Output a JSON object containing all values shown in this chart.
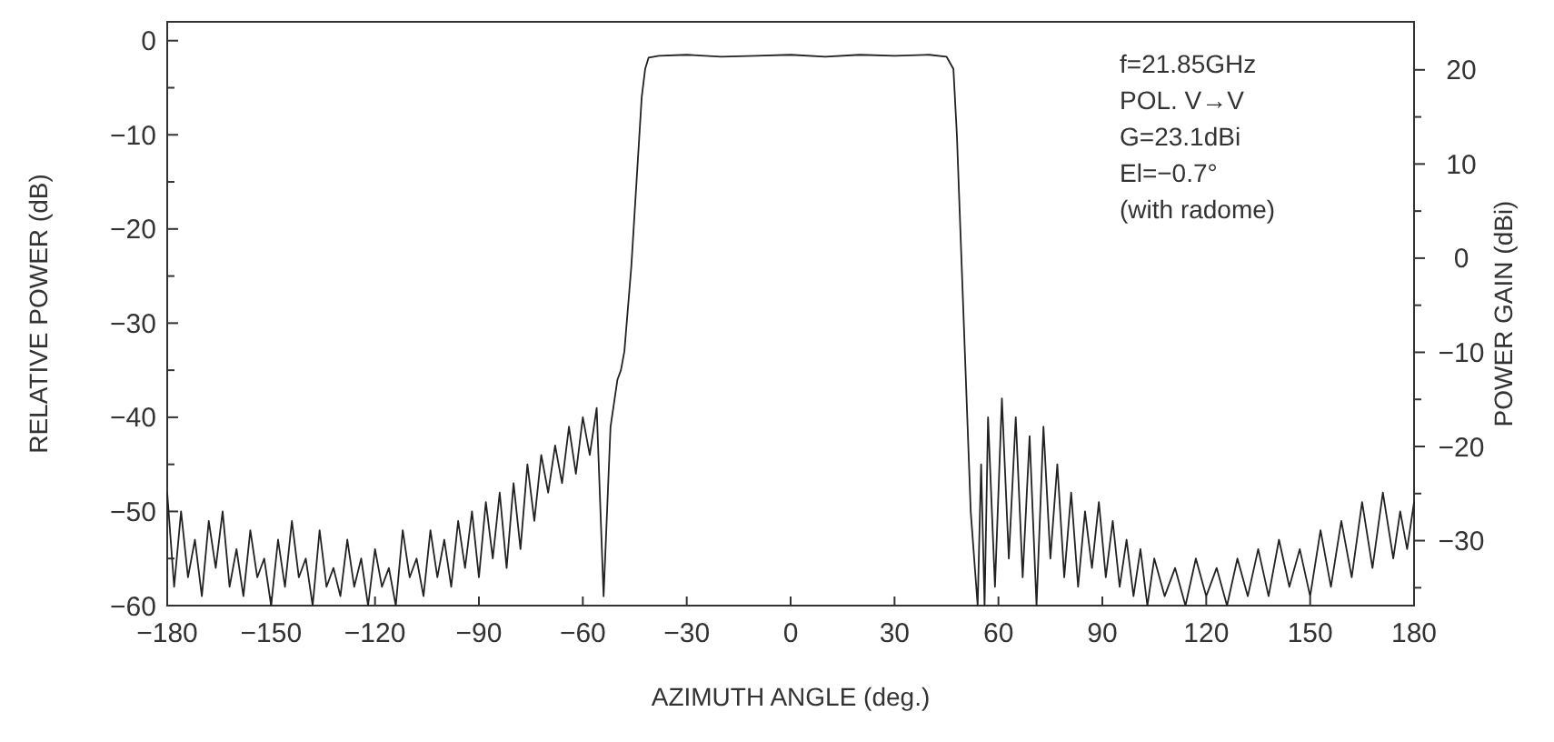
{
  "chart_data": {
    "type": "line",
    "xlabel": "AZIMUTH ANGLE (deg.)",
    "ylabel": "RELATIVE POWER (dB)",
    "y2label": "POWER GAIN (dBi)",
    "annotations": [
      "f=21.85GHz",
      "POL. V→V",
      "G=23.1dBi",
      "El=−0.7°",
      "(with radome)"
    ],
    "xlim": [
      -180,
      180
    ],
    "xticks": [
      {
        "value": -180,
        "label": "−180"
      },
      {
        "value": -150,
        "label": "−150"
      },
      {
        "value": -120,
        "label": "−120"
      },
      {
        "value": -90,
        "label": "−90"
      },
      {
        "value": -60,
        "label": "−60"
      },
      {
        "value": -30,
        "label": "−30"
      },
      0,
      30,
      60,
      90,
      120,
      150,
      180
    ],
    "ylim": [
      -60,
      2
    ],
    "yticks": [
      {
        "value": -60,
        "label": "−60"
      },
      {
        "value": -55,
        "label": null
      },
      {
        "value": -50,
        "label": "−50"
      },
      {
        "value": -45,
        "label": null
      },
      {
        "value": -40,
        "label": "−40"
      },
      {
        "value": -35,
        "label": null
      },
      {
        "value": -30,
        "label": "−30"
      },
      {
        "value": -25,
        "label": null
      },
      {
        "value": -20,
        "label": "−20"
      },
      {
        "value": -15,
        "label": null
      },
      {
        "value": -10,
        "label": "−10"
      },
      {
        "value": -5,
        "label": null
      },
      0
    ],
    "y2lim": [
      -36.9,
      25.1
    ],
    "y2ticks": [
      {
        "value": -35,
        "label": null
      },
      {
        "value": -30,
        "label": "−30"
      },
      {
        "value": -25,
        "label": null
      },
      {
        "value": -20,
        "label": "−20"
      },
      {
        "value": -15,
        "label": null
      },
      {
        "value": -10,
        "label": "−10"
      },
      {
        "value": -5,
        "label": null
      },
      0,
      {
        "value": 5,
        "label": null
      },
      10,
      {
        "value": 15,
        "label": null
      },
      20
    ],
    "grid": false,
    "marker": "none",
    "line_style": "solid",
    "series": [
      {
        "color": "#222222",
        "x": [
          -180,
          -178,
          -176,
          -174,
          -172,
          -170,
          -168,
          -166,
          -164,
          -162,
          -160,
          -158,
          -156,
          -154,
          -152,
          -150,
          -148,
          -146,
          -144,
          -142,
          -140,
          -138,
          -136,
          -134,
          -132,
          -130,
          -128,
          -126,
          -124,
          -122,
          -120,
          -118,
          -116,
          -114,
          -112,
          -110,
          -108,
          -106,
          -104,
          -102,
          -100,
          -98,
          -96,
          -94,
          -92,
          -90,
          -88,
          -86,
          -84,
          -82,
          -80,
          -78,
          -76,
          -74,
          -72,
          -70,
          -68,
          -66,
          -64,
          -62,
          -60,
          -58,
          -56,
          -54,
          -52,
          -50,
          -49,
          -48,
          -46,
          -44,
          -43,
          -42,
          -41,
          -38,
          -30,
          -20,
          -10,
          0,
          10,
          20,
          30,
          40,
          45,
          47,
          48,
          50,
          52,
          54,
          55,
          56,
          57,
          59,
          61,
          63,
          65,
          67,
          69,
          71,
          73,
          75,
          77,
          79,
          81,
          83,
          85,
          87,
          89,
          91,
          93,
          95,
          97,
          99,
          101,
          103,
          105,
          108,
          111,
          114,
          117,
          120,
          123,
          126,
          129,
          132,
          135,
          138,
          141,
          144,
          147,
          150,
          153,
          156,
          159,
          162,
          165,
          168,
          171,
          174,
          176,
          178,
          180
        ],
        "values": [
          -48,
          -58,
          -50,
          -57,
          -53,
          -59,
          -51,
          -56,
          -50,
          -58,
          -54,
          -59,
          -52,
          -57,
          -55,
          -60,
          -53,
          -58,
          -51,
          -57,
          -55,
          -60,
          -52,
          -58,
          -56,
          -59,
          -53,
          -58,
          -55,
          -60,
          -54,
          -58,
          -56,
          -60,
          -52,
          -57,
          -55,
          -59,
          -52,
          -57,
          -53,
          -58,
          -51,
          -56,
          -50,
          -57,
          -49,
          -55,
          -48,
          -56,
          -47,
          -54,
          -45,
          -51,
          -44,
          -48,
          -43,
          -47,
          -41,
          -46,
          -40,
          -44,
          -39,
          -59,
          -41,
          -36,
          -35,
          -33,
          -24,
          -12,
          -6,
          -3,
          -1.8,
          -1.6,
          -1.5,
          -1.7,
          -1.6,
          -1.5,
          -1.7,
          -1.5,
          -1.6,
          -1.5,
          -1.7,
          -3,
          -10,
          -30,
          -50,
          -60,
          -45,
          -60,
          -40,
          -58,
          -38,
          -55,
          -40,
          -57,
          -42,
          -60,
          -41,
          -55,
          -45,
          -57,
          -48,
          -58,
          -50,
          -56,
          -49,
          -57,
          -51,
          -58,
          -53,
          -59,
          -54,
          -60,
          -55,
          -59,
          -56,
          -60,
          -55,
          -59,
          -56,
          -60,
          -55,
          -59,
          -54,
          -59,
          -53,
          -58,
          -54,
          -59,
          -52,
          -58,
          -51,
          -57,
          -49,
          -56,
          -48,
          -55,
          -50,
          -54,
          -49
        ]
      }
    ]
  }
}
